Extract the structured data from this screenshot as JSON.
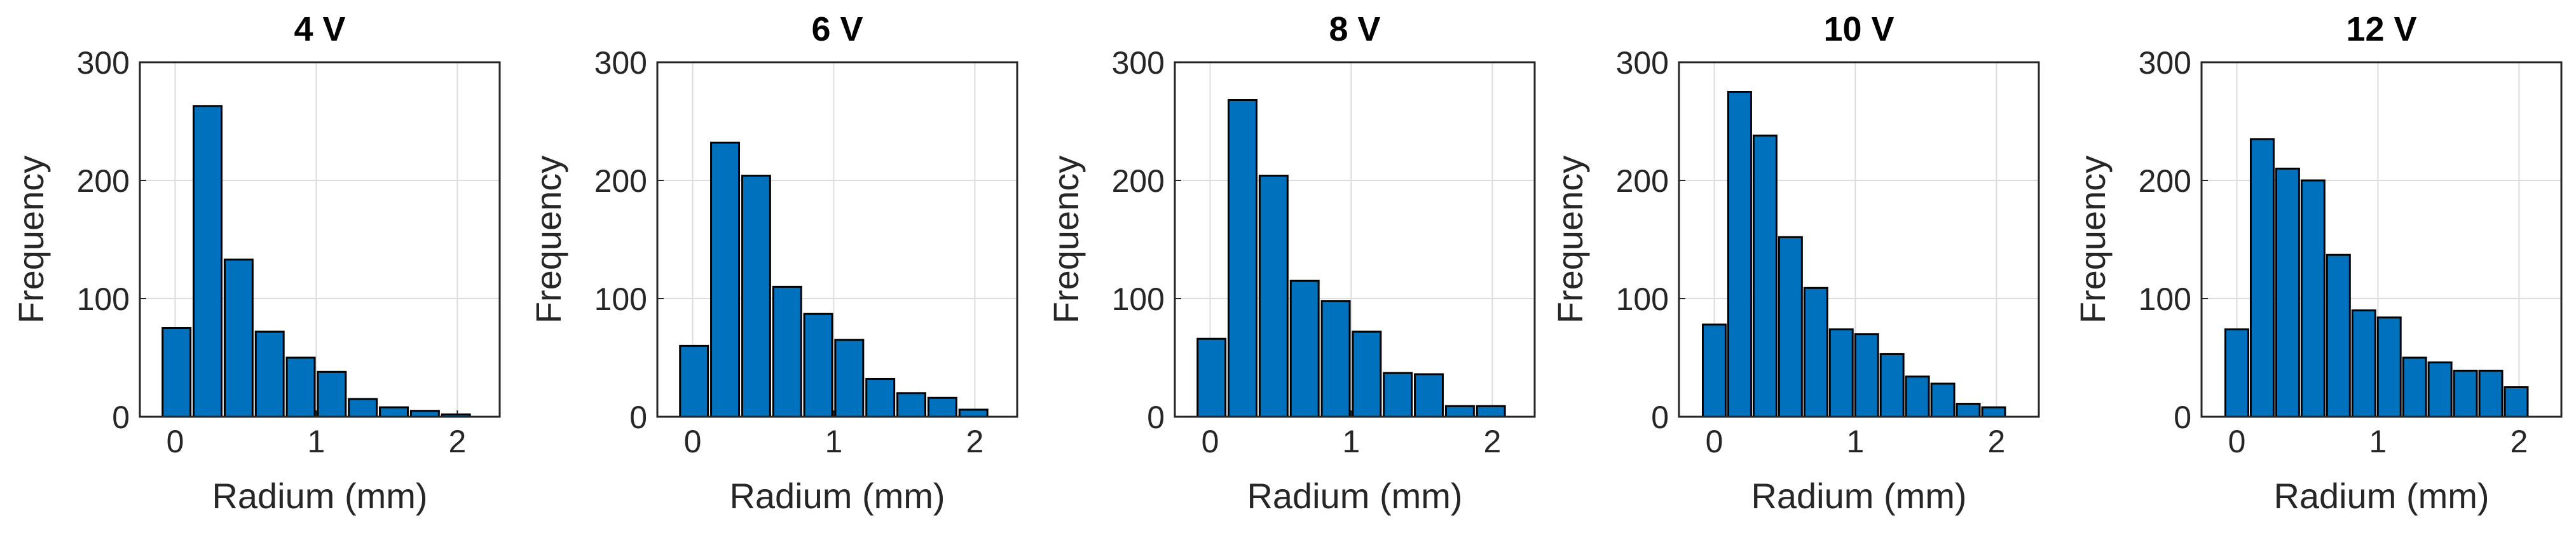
{
  "chart_data": [
    {
      "type": "histogram",
      "title": "4 V",
      "xlabel": "Radium (mm)",
      "ylabel": "Frequency",
      "bins": [
        -0.1,
        0.12,
        0.34,
        0.56,
        0.78,
        1.0,
        1.22,
        1.44,
        1.66,
        1.88,
        2.1
      ],
      "values": [
        75,
        263,
        133,
        72,
        50,
        38,
        15,
        8,
        5,
        2
      ],
      "xlim": [
        -0.25,
        2.3
      ],
      "ylim": [
        0,
        300
      ],
      "xticks": [
        0,
        1,
        2
      ],
      "yticks": [
        0,
        100,
        200,
        300
      ],
      "color": "#0072BD",
      "grid": true
    },
    {
      "type": "histogram",
      "title": "6 V",
      "xlabel": "Radium (mm)",
      "ylabel": "Frequency",
      "bins": [
        -0.1,
        0.12,
        0.34,
        0.56,
        0.78,
        1.0,
        1.22,
        1.44,
        1.66,
        1.88,
        2.1
      ],
      "values": [
        60,
        232,
        204,
        110,
        87,
        65,
        32,
        20,
        16,
        6
      ],
      "xlim": [
        -0.25,
        2.3
      ],
      "ylim": [
        0,
        300
      ],
      "xticks": [
        0,
        1,
        2
      ],
      "yticks": [
        0,
        100,
        200,
        300
      ],
      "color": "#0072BD",
      "grid": true
    },
    {
      "type": "histogram",
      "title": "8 V",
      "xlabel": "Radium (mm)",
      "ylabel": "Frequency",
      "bins": [
        -0.1,
        0.12,
        0.34,
        0.56,
        0.78,
        1.0,
        1.22,
        1.44,
        1.66,
        1.88,
        2.1
      ],
      "values": [
        66,
        268,
        204,
        115,
        98,
        72,
        37,
        36,
        9,
        9
      ],
      "xlim": [
        -0.25,
        2.3
      ],
      "ylim": [
        0,
        300
      ],
      "xticks": [
        0,
        1,
        2
      ],
      "yticks": [
        0,
        100,
        200,
        300
      ],
      "color": "#0072BD",
      "grid": true
    },
    {
      "type": "histogram",
      "title": "10 V",
      "xlabel": "Radium (mm)",
      "ylabel": "Frequency",
      "bins": [
        -0.09,
        0.09,
        0.27,
        0.45,
        0.63,
        0.81,
        0.99,
        1.17,
        1.35,
        1.53,
        1.71,
        1.89,
        2.07
      ],
      "values": [
        78,
        275,
        238,
        152,
        109,
        74,
        70,
        53,
        34,
        28,
        11,
        8
      ],
      "xlim": [
        -0.25,
        2.3
      ],
      "ylim": [
        0,
        300
      ],
      "xticks": [
        0,
        1,
        2
      ],
      "yticks": [
        0,
        100,
        200,
        300
      ],
      "color": "#0072BD",
      "grid": true
    },
    {
      "type": "histogram",
      "title": "12 V",
      "xlabel": "Radium (mm)",
      "ylabel": "Frequency",
      "bins": [
        -0.09,
        0.09,
        0.27,
        0.45,
        0.63,
        0.81,
        0.99,
        1.17,
        1.35,
        1.53,
        1.71,
        1.89,
        2.07
      ],
      "values": [
        74,
        235,
        210,
        200,
        137,
        90,
        84,
        50,
        46,
        39,
        39,
        25
      ],
      "xlim": [
        -0.25,
        2.3
      ],
      "ylim": [
        0,
        300
      ],
      "xticks": [
        0,
        1,
        2
      ],
      "yticks": [
        0,
        100,
        200,
        300
      ],
      "color": "#0072BD",
      "grid": true
    }
  ]
}
